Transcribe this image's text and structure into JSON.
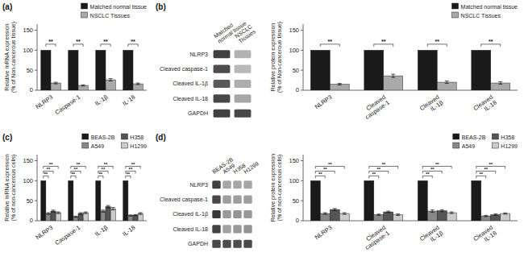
{
  "chart_data": [
    {
      "type": "bar",
      "title": "(a)",
      "categories": [
        "NLRP3",
        "Caspase-1",
        "IL-1β",
        "IL-18"
      ],
      "series": [
        {
          "name": "Matched normal tissue",
          "color": "#1a1a1a",
          "values": [
            100,
            100,
            100,
            100
          ]
        },
        {
          "name": "NSCLC Tissues",
          "color": "#aaaaaa",
          "values": [
            18,
            12,
            26,
            16
          ],
          "errors": [
            2,
            1.5,
            3,
            2
          ]
        }
      ],
      "ylabel": "Relative mRNA expression\n(% of Non-cancerous tissue)",
      "ylim": [
        0,
        165
      ],
      "yticks": [
        0,
        50,
        100,
        150
      ],
      "legend": "upper right",
      "annotations": [
        {
          "text": "**",
          "category": 0,
          "series": [
            0,
            1
          ],
          "y": 115
        },
        {
          "text": "**",
          "category": 1,
          "series": [
            0,
            1
          ],
          "y": 115
        },
        {
          "text": "**",
          "category": 2,
          "series": [
            0,
            1
          ],
          "y": 115
        },
        {
          "text": "**",
          "category": 3,
          "series": [
            0,
            1
          ],
          "y": 115
        }
      ]
    },
    {
      "type": "blot",
      "title": "(b)",
      "categories": [
        "NLRP3",
        "Cleaved caspase-1",
        "Cleaved IL-1β",
        "Cleaved IL-18",
        "GAPDH"
      ],
      "series": [
        {
          "name": "Matched\nnormal tissue",
          "colors": [
            "#404040",
            "#4c4c4c",
            "#595959",
            "#474747",
            "#404040"
          ]
        },
        {
          "name": "NSCLC\nTissues",
          "colors": [
            "#b2b2b2",
            "#b8b8b8",
            "#adadad",
            "#a6a6a6",
            "#474747"
          ]
        }
      ]
    },
    {
      "type": "bar",
      "categories": [
        "NLRP3",
        "Cleaved\ncaspase-1",
        "Cleaved\nIL-1β",
        "Cleaved\nIL-18"
      ],
      "series": [
        {
          "name": "Matched normal tissue",
          "color": "#1a1a1a",
          "values": [
            100,
            100,
            100,
            100
          ]
        },
        {
          "name": "NSCLC Tissues",
          "color": "#aaaaaa",
          "values": [
            15,
            36,
            20,
            18
          ],
          "errors": [
            2,
            4,
            3,
            3
          ]
        }
      ],
      "ylabel": "Relative protein expression\n(% of Non-cancerous tissue)",
      "ylim": [
        0,
        165
      ],
      "yticks": [
        0,
        50,
        100,
        150
      ],
      "legend": "upper right",
      "annotations": [
        {
          "text": "**",
          "category": 0,
          "series": [
            0,
            1
          ],
          "y": 115
        },
        {
          "text": "**",
          "category": 1,
          "series": [
            0,
            1
          ],
          "y": 115
        },
        {
          "text": "**",
          "category": 2,
          "series": [
            0,
            1
          ],
          "y": 115
        },
        {
          "text": "**",
          "category": 3,
          "series": [
            0,
            1
          ],
          "y": 115
        }
      ]
    },
    {
      "type": "bar",
      "title": "(c)",
      "categories": [
        "NLRP3",
        "Caspase-1",
        "IL-1β",
        "IL-18"
      ],
      "series": [
        {
          "name": "BEAS-2B",
          "color": "#1a1a1a",
          "values": [
            100,
            100,
            100,
            100
          ]
        },
        {
          "name": "A549",
          "color": "#888888",
          "values": [
            18,
            10,
            24,
            13
          ],
          "errors": [
            2,
            1.5,
            2.5,
            1.5
          ]
        },
        {
          "name": "H358",
          "color": "#555555",
          "values": [
            24,
            18,
            35,
            14
          ],
          "errors": [
            2.5,
            2,
            3,
            1.5
          ]
        },
        {
          "name": "H1299",
          "color": "#cccccc",
          "values": [
            20,
            20,
            30,
            18
          ],
          "errors": [
            2,
            2,
            3,
            2
          ]
        }
      ],
      "ylabel": "Relative mRNA expression\n(% of non-cancerous cells)",
      "ylim": [
        0,
        165
      ],
      "yticks": [
        0,
        50,
        100,
        150
      ],
      "legend": "upper right",
      "annotations": [
        {
          "text": "**",
          "category": 0,
          "series": [
            0,
            1
          ],
          "y": 112
        },
        {
          "text": "**",
          "category": 0,
          "series": [
            0,
            2
          ],
          "y": 124
        },
        {
          "text": "**",
          "category": 0,
          "series": [
            0,
            3
          ],
          "y": 136
        },
        {
          "text": "**",
          "category": 1,
          "series": [
            0,
            1
          ],
          "y": 112
        },
        {
          "text": "**",
          "category": 1,
          "series": [
            0,
            2
          ],
          "y": 124
        },
        {
          "text": "**",
          "category": 1,
          "series": [
            0,
            3
          ],
          "y": 136
        },
        {
          "text": "**",
          "category": 2,
          "series": [
            0,
            1
          ],
          "y": 112
        },
        {
          "text": "**",
          "category": 2,
          "series": [
            0,
            2
          ],
          "y": 124
        },
        {
          "text": "**",
          "category": 2,
          "series": [
            0,
            3
          ],
          "y": 136
        },
        {
          "text": "**",
          "category": 3,
          "series": [
            0,
            1
          ],
          "y": 112
        },
        {
          "text": "**",
          "category": 3,
          "series": [
            0,
            2
          ],
          "y": 124
        },
        {
          "text": "**",
          "category": 3,
          "series": [
            0,
            3
          ],
          "y": 136
        }
      ]
    },
    {
      "type": "blot",
      "title": "(d)",
      "categories": [
        "NLRP3",
        "Cleaved caspase-1",
        "Cleaved IL-1β",
        "Cleaved IL-18",
        "GAPDH"
      ],
      "series": [
        {
          "name": "BEAS-2B",
          "colors": [
            "#404040",
            "#474747",
            "#383838",
            "#424242",
            "#474747"
          ]
        },
        {
          "name": "A549",
          "colors": [
            "#a6a6a6",
            "#9e9e9e",
            "#999999",
            "#a1a1a1",
            "#4c4c4c"
          ]
        },
        {
          "name": "H358",
          "colors": [
            "#a6a6a6",
            "#9e9e9e",
            "#949494",
            "#999999",
            "#4c4c4c"
          ]
        },
        {
          "name": "H1299",
          "colors": [
            "#a6a6a6",
            "#9e9e9e",
            "#999999",
            "#949494",
            "#4a4a4a"
          ]
        }
      ]
    },
    {
      "type": "bar",
      "categories": [
        "NLRP3",
        "Cleaved\ncaspase-1",
        "Cleaved\nIL-1β",
        "Cleaved\nIL-18"
      ],
      "series": [
        {
          "name": "BEAS-2B",
          "color": "#1a1a1a",
          "values": [
            100,
            100,
            100,
            100
          ]
        },
        {
          "name": "A549",
          "color": "#888888",
          "values": [
            18,
            15,
            24,
            12
          ],
          "errors": [
            2,
            1.5,
            3,
            1.5
          ]
        },
        {
          "name": "H358",
          "color": "#555555",
          "values": [
            28,
            22,
            25,
            15
          ],
          "errors": [
            2.5,
            2,
            2.5,
            2
          ]
        },
        {
          "name": "H1299",
          "color": "#cccccc",
          "values": [
            18,
            15,
            20,
            18
          ],
          "errors": [
            2,
            2,
            2,
            1.5
          ]
        }
      ],
      "ylabel": "Relative protein expression\n(% of non-cancerous cells)",
      "ylim": [
        0,
        165
      ],
      "yticks": [
        0,
        50,
        100,
        150
      ],
      "legend": "upper right",
      "annotations": [
        {
          "text": "**",
          "category": 0,
          "series": [
            0,
            1
          ],
          "y": 112
        },
        {
          "text": "**",
          "category": 0,
          "series": [
            0,
            2
          ],
          "y": 124
        },
        {
          "text": "**",
          "category": 0,
          "series": [
            0,
            3
          ],
          "y": 136
        },
        {
          "text": "**",
          "category": 1,
          "series": [
            0,
            1
          ],
          "y": 112
        },
        {
          "text": "**",
          "category": 1,
          "series": [
            0,
            2
          ],
          "y": 124
        },
        {
          "text": "**",
          "category": 1,
          "series": [
            0,
            3
          ],
          "y": 136
        },
        {
          "text": "**",
          "category": 2,
          "series": [
            0,
            1
          ],
          "y": 112
        },
        {
          "text": "**",
          "category": 2,
          "series": [
            0,
            2
          ],
          "y": 124
        },
        {
          "text": "**",
          "category": 2,
          "series": [
            0,
            3
          ],
          "y": 136
        },
        {
          "text": "**",
          "category": 3,
          "series": [
            0,
            1
          ],
          "y": 112
        },
        {
          "text": "**",
          "category": 3,
          "series": [
            0,
            2
          ],
          "y": 124
        },
        {
          "text": "**",
          "category": 3,
          "series": [
            0,
            3
          ],
          "y": 136
        }
      ]
    }
  ]
}
